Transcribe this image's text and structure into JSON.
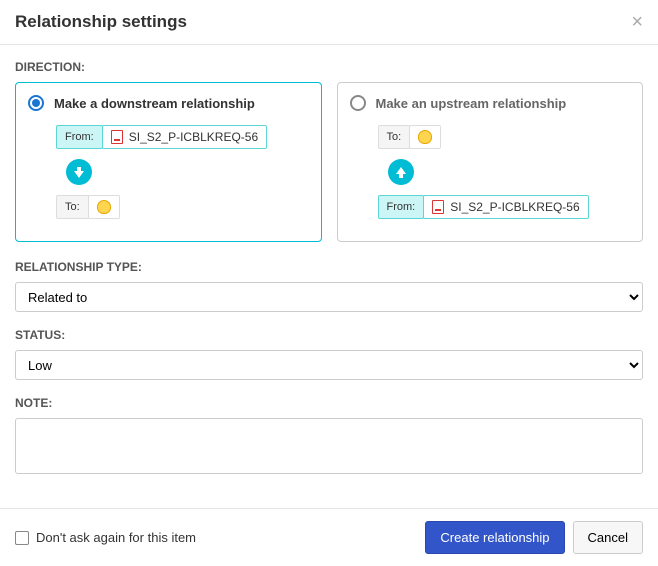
{
  "modal": {
    "title": "Relationship settings"
  },
  "direction": {
    "label": "DIRECTION:",
    "downstream": {
      "title": "Make a downstream relationship",
      "selected": true,
      "from_label": "From:",
      "from_value": "SI_S2_P-ICBLKREQ-56",
      "to_label": "To:"
    },
    "upstream": {
      "title": "Make an upstream relationship",
      "selected": false,
      "to_label": "To:",
      "from_label": "From:",
      "from_value": "SI_S2_P-ICBLKREQ-56"
    }
  },
  "relationship_type": {
    "label": "RELATIONSHIP TYPE:",
    "value": "Related to"
  },
  "status": {
    "label": "STATUS:",
    "value": "Low"
  },
  "note": {
    "label": "NOTE:",
    "value": ""
  },
  "footer": {
    "dont_ask_label": "Don't ask again for this item",
    "create_label": "Create relationship",
    "cancel_label": "Cancel"
  },
  "colors": {
    "accent_teal": "#00bcd4",
    "primary_blue": "#3256c9",
    "border_gray": "#ccc"
  }
}
